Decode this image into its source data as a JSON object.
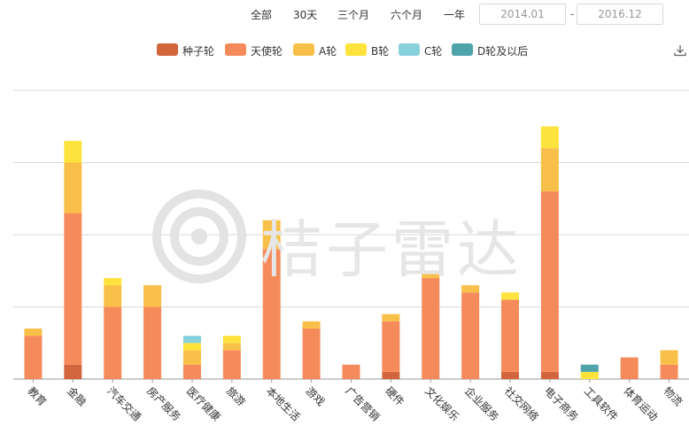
{
  "toolbar": {
    "ranges": [
      "全部",
      "30天",
      "三个月",
      "六个月",
      "一年"
    ],
    "date_from": "2014.01",
    "date_sep": "-",
    "date_to": "2016.12"
  },
  "watermark": {
    "brand": "桔子雷达"
  },
  "icons": {
    "download": "download-icon",
    "watermark_logo": "logo-icon"
  },
  "chart_data": {
    "type": "bar",
    "stacked": true,
    "ylim": [
      0,
      400
    ],
    "grid": true,
    "legend_position": "top-center",
    "categories": [
      "教育",
      "金融",
      "汽车交通",
      "房产服务",
      "医疗健康",
      "旅游",
      "本地生活",
      "游戏",
      "广告营销",
      "硬件",
      "文化娱乐",
      "企业服务",
      "社交网络",
      "电子商务",
      "工具软件",
      "体育运动",
      "物流"
    ],
    "series": [
      {
        "name": "种子轮",
        "color": "#d2653b",
        "values": [
          0,
          20,
          0,
          0,
          0,
          0,
          0,
          0,
          0,
          10,
          0,
          0,
          10,
          10,
          0,
          0,
          0
        ]
      },
      {
        "name": "天使轮",
        "color": "#f58b5b",
        "values": [
          60,
          210,
          100,
          100,
          20,
          40,
          180,
          70,
          20,
          70,
          140,
          120,
          100,
          250,
          0,
          30,
          20
        ]
      },
      {
        "name": "A轮",
        "color": "#f9c049",
        "values": [
          10,
          70,
          30,
          30,
          20,
          10,
          40,
          10,
          0,
          10,
          10,
          10,
          0,
          60,
          0,
          0,
          20
        ]
      },
      {
        "name": "B轮",
        "color": "#fde33b",
        "values": [
          0,
          30,
          10,
          0,
          10,
          10,
          0,
          0,
          0,
          0,
          0,
          0,
          10,
          30,
          10,
          0,
          0
        ]
      },
      {
        "name": "C轮",
        "color": "#88d1dc",
        "values": [
          0,
          0,
          0,
          0,
          10,
          0,
          0,
          0,
          0,
          0,
          0,
          0,
          0,
          0,
          0,
          0,
          0
        ]
      },
      {
        "name": "D轮及以后",
        "color": "#4fa3ab",
        "values": [
          0,
          0,
          0,
          0,
          0,
          0,
          0,
          0,
          0,
          0,
          0,
          0,
          0,
          0,
          10,
          0,
          0
        ]
      }
    ]
  }
}
